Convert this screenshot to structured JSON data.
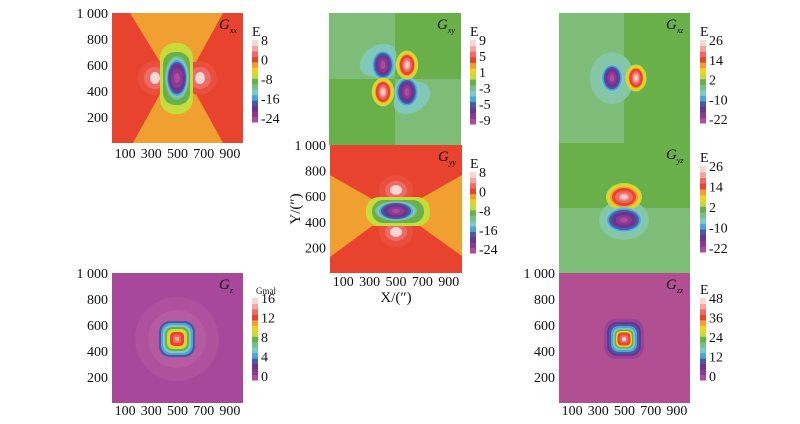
{
  "chart_data": [
    {
      "type": "heatmap",
      "id": "gxx",
      "title": "G",
      "title_sub": "xx",
      "colorbar_label": "E",
      "colorbar_ticks": [
        "8",
        "0",
        "-8",
        "-16",
        "-24"
      ],
      "colorbar_range": [
        -26,
        10
      ],
      "x_ticks": [
        "100",
        "300",
        "500",
        "700",
        "900"
      ],
      "y_ticks": [
        "1 000",
        "800",
        "600",
        "400",
        "200"
      ],
      "xlim": [
        0,
        1000
      ],
      "ylim": [
        0,
        1000
      ],
      "show_x_ticks": true,
      "show_y_ticks": true
    },
    {
      "type": "heatmap",
      "id": "gxy",
      "title": "G",
      "title_sub": "xy",
      "colorbar_label": "E",
      "colorbar_ticks": [
        "9",
        "5",
        "1",
        "-3",
        "-5",
        "-9"
      ],
      "colorbar_range": [
        -10,
        10
      ],
      "x_ticks": [],
      "y_ticks": [],
      "xlim": [
        0,
        1000
      ],
      "ylim": [
        0,
        1000
      ],
      "show_x_ticks": false,
      "show_y_ticks": false
    },
    {
      "type": "heatmap",
      "id": "gxz",
      "title": "G",
      "title_sub": "xz",
      "colorbar_label": "E",
      "colorbar_ticks": [
        "26",
        "14",
        "2",
        "-10",
        "-22"
      ],
      "colorbar_range": [
        -26,
        28
      ],
      "x_ticks": [],
      "y_ticks": [],
      "xlim": [
        0,
        1000
      ],
      "ylim": [
        0,
        1000
      ],
      "show_x_ticks": false,
      "show_y_ticks": false
    },
    {
      "type": "heatmap",
      "id": "gyy",
      "title": "G",
      "title_sub": "yy",
      "colorbar_label": "E",
      "colorbar_ticks": [
        "8",
        "0",
        "-8",
        "-16",
        "-24"
      ],
      "colorbar_range": [
        -26,
        10
      ],
      "x_ticks": [
        "100",
        "300",
        "500",
        "700",
        "900"
      ],
      "y_ticks": [
        "1 000",
        "800",
        "600",
        "400",
        "200"
      ],
      "xlim": [
        0,
        1000
      ],
      "ylim": [
        0,
        1000
      ],
      "xlabel": "X/(″)",
      "ylabel": "Y/(″)",
      "show_x_ticks": true,
      "show_y_ticks": true
    },
    {
      "type": "heatmap",
      "id": "gyz",
      "title": "G",
      "title_sub": "yz",
      "colorbar_label": "E",
      "colorbar_ticks": [
        "26",
        "14",
        "2",
        "-10",
        "-22"
      ],
      "colorbar_range": [
        -26,
        28
      ],
      "x_ticks": [],
      "y_ticks": [],
      "xlim": [
        0,
        1000
      ],
      "ylim": [
        0,
        1000
      ],
      "show_x_ticks": false,
      "show_y_ticks": false
    },
    {
      "type": "heatmap",
      "id": "gz",
      "title": "G",
      "title_sub": "z",
      "colorbar_label": "Gmal",
      "colorbar_ticks": [
        "16",
        "12",
        "8",
        "4",
        "0"
      ],
      "colorbar_range": [
        -2,
        17
      ],
      "x_ticks": [
        "100",
        "300",
        "500",
        "700",
        "900"
      ],
      "y_ticks": [
        "1 000",
        "800",
        "600",
        "400",
        "200"
      ],
      "xlim": [
        0,
        1000
      ],
      "ylim": [
        0,
        1000
      ],
      "show_x_ticks": true,
      "show_y_ticks": true
    },
    {
      "type": "heatmap",
      "id": "gzz",
      "title": "G",
      "title_sub": "zz",
      "colorbar_label": "E",
      "colorbar_ticks": [
        "48",
        "36",
        "24",
        "12",
        "0"
      ],
      "colorbar_range": [
        -2,
        50
      ],
      "x_ticks": [
        "100",
        "300",
        "500",
        "700",
        "900"
      ],
      "y_ticks": [
        "1 000",
        "800",
        "600",
        "400",
        "200"
      ],
      "xlim": [
        0,
        1000
      ],
      "ylim": [
        0,
        1000
      ],
      "show_x_ticks": true,
      "show_y_ticks": true
    }
  ],
  "palette": [
    "#b24a9c",
    "#8a3a94",
    "#6a3590",
    "#4a56a6",
    "#4aa6da",
    "#7ccac2",
    "#78c08a",
    "#6ab04a",
    "#c6dc3a",
    "#f2d020",
    "#f0a030",
    "#e8432e",
    "#ee6a66",
    "#f4a4a4",
    "#fbd6d6"
  ]
}
